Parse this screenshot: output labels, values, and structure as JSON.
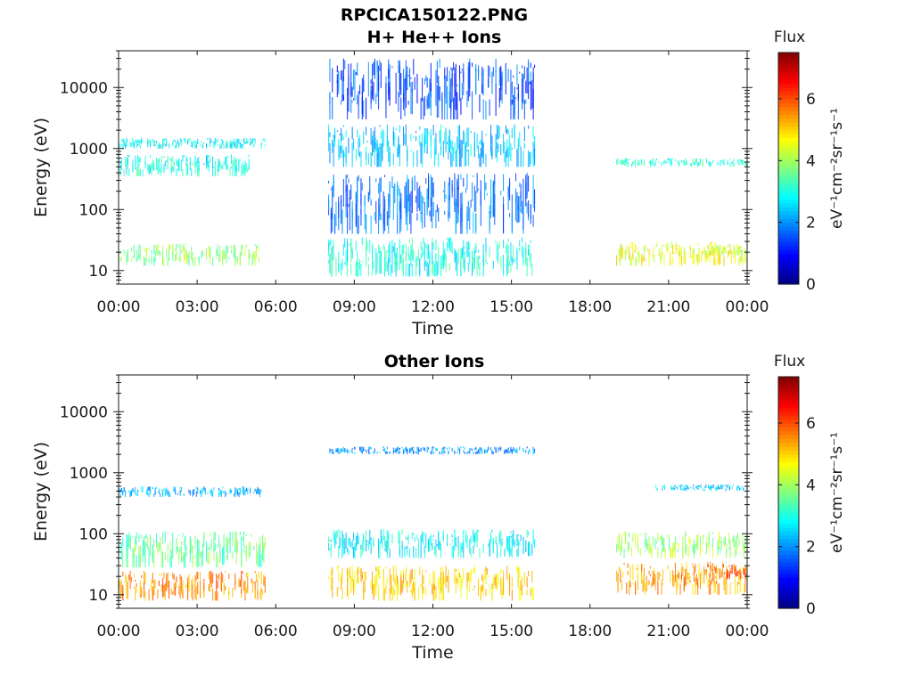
{
  "figure_title": "RPCICA150122.PNG",
  "colors": {
    "colormap": [
      "#00007f",
      "#0000ff",
      "#007fff",
      "#00ffff",
      "#7fff7f",
      "#ffff00",
      "#ff7f00",
      "#ff0000",
      "#7f0000"
    ],
    "axis": "#1a1a1a",
    "background": "#ffffff"
  },
  "chart_data": [
    {
      "type": "heatmap",
      "title": "H+ He++ Ions",
      "xlabel": "Time",
      "ylabel": "Energy (eV)",
      "x_ticks": [
        "00:00",
        "03:00",
        "06:00",
        "09:00",
        "12:00",
        "15:00",
        "18:00",
        "21:00",
        "00:00"
      ],
      "x_range_hours": [
        0,
        24
      ],
      "y_scale": "log",
      "y_range": [
        6,
        40000
      ],
      "y_ticks": [
        10,
        100,
        1000,
        10000
      ],
      "colorbar": {
        "label": "Flux",
        "units": "eV⁻¹cm⁻²sr⁻¹s⁻¹",
        "ticks": [
          0,
          2,
          4,
          6
        ],
        "range": [
          0,
          7.5
        ]
      },
      "blocks": [
        {
          "t": [
            0,
            5.6
          ],
          "e": [
            1000,
            1500
          ],
          "flux": 2.8
        },
        {
          "t": [
            0,
            5.0
          ],
          "e": [
            350,
            800
          ],
          "flux": 3.0
        },
        {
          "t": [
            0,
            5.5
          ],
          "e": [
            12,
            28
          ],
          "flux": 3.8
        },
        {
          "t": [
            8.0,
            15.9
          ],
          "e": [
            8,
            35
          ],
          "flux": 3.0
        },
        {
          "t": [
            8.0,
            15.9
          ],
          "e": [
            40,
            400
          ],
          "flux": 1.8
        },
        {
          "t": [
            8.0,
            15.9
          ],
          "e": [
            500,
            2500
          ],
          "flux": 2.4
        },
        {
          "t": [
            8.0,
            15.9
          ],
          "e": [
            3000,
            30000
          ],
          "flux": 1.5
        },
        {
          "t": [
            19.0,
            24.0
          ],
          "e": [
            500,
            700
          ],
          "flux": 3.2
        },
        {
          "t": [
            19.0,
            24.0
          ],
          "e": [
            12,
            30
          ],
          "flux": 4.6
        },
        {
          "t": [
            22.5,
            24.0
          ],
          "e": [
            18,
            28
          ],
          "flux": 4.1
        }
      ]
    },
    {
      "type": "heatmap",
      "title": "Other Ions",
      "xlabel": "Time",
      "ylabel": "Energy (eV)",
      "x_ticks": [
        "00:00",
        "03:00",
        "06:00",
        "09:00",
        "12:00",
        "15:00",
        "18:00",
        "21:00",
        "00:00"
      ],
      "x_range_hours": [
        0,
        24
      ],
      "y_scale": "log",
      "y_range": [
        6,
        40000
      ],
      "y_ticks": [
        10,
        100,
        1000,
        10000
      ],
      "colorbar": {
        "label": "Flux",
        "units": "eV⁻¹cm⁻²sr⁻¹s⁻¹",
        "ticks": [
          0,
          2,
          4,
          6
        ],
        "range": [
          0,
          7.5
        ]
      },
      "blocks": [
        {
          "t": [
            0,
            5.6
          ],
          "e": [
            8,
            25
          ],
          "flux": 5.5
        },
        {
          "t": [
            0,
            5.6
          ],
          "e": [
            28,
            110
          ],
          "flux": 3.6
        },
        {
          "t": [
            0,
            5.5
          ],
          "e": [
            400,
            600
          ],
          "flux": 2.2
        },
        {
          "t": [
            8.0,
            15.9
          ],
          "e": [
            8,
            30
          ],
          "flux": 5.0
        },
        {
          "t": [
            8.0,
            15.9
          ],
          "e": [
            40,
            120
          ],
          "flux": 2.8
        },
        {
          "t": [
            8.0,
            15.9
          ],
          "e": [
            2000,
            2700
          ],
          "flux": 2.0
        },
        {
          "t": [
            19.0,
            24.0
          ],
          "e": [
            10,
            35
          ],
          "flux": 5.4
        },
        {
          "t": [
            19.0,
            24.0
          ],
          "e": [
            40,
            110
          ],
          "flux": 4.0
        },
        {
          "t": [
            22.5,
            24.0
          ],
          "e": [
            18,
            32
          ],
          "flux": 6.0
        },
        {
          "t": [
            20.5,
            24.0
          ],
          "e": [
            500,
            650
          ],
          "flux": 2.4
        }
      ]
    }
  ]
}
